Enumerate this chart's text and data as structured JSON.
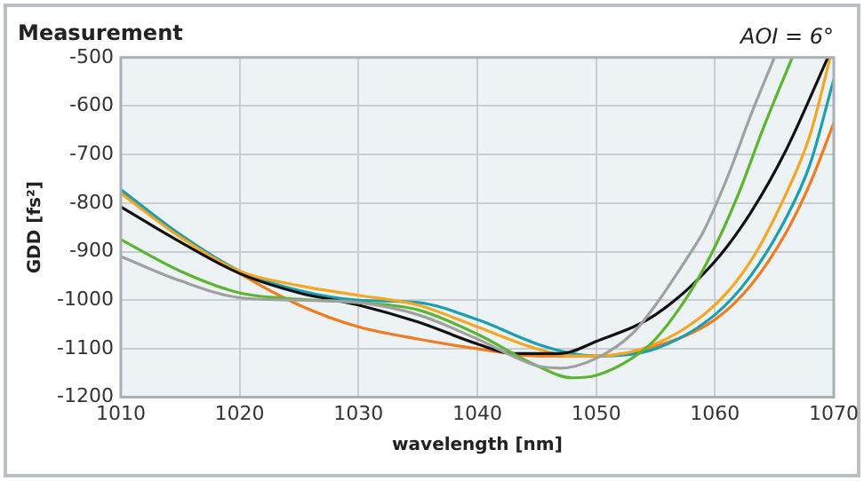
{
  "chart_data": {
    "type": "line",
    "title": "Measurement",
    "xlabel": "wavelength [nm]",
    "ylabel": "GDD [fs²]",
    "annotations": [
      "AOI = 6°"
    ],
    "xlim": [
      1010,
      1070
    ],
    "xticks": [
      1010,
      1020,
      1030,
      1040,
      1050,
      1060,
      1070
    ],
    "ylim": [
      -1200,
      -500
    ],
    "yticks": [
      -1200,
      -1100,
      -1000,
      -900,
      -800,
      -700,
      -600,
      -500
    ],
    "grid": true,
    "marker": "none",
    "line_style": "solid",
    "legend": false,
    "series": [
      {
        "color": "#a0a0a0",
        "x": [
          1010,
          1015,
          1020,
          1025,
          1030,
          1035,
          1040,
          1045,
          1047,
          1050,
          1053,
          1055,
          1058,
          1059,
          1061,
          1063,
          1065
        ],
        "values": [
          -910,
          -960,
          -995,
          -1000,
          -1005,
          -1030,
          -1080,
          -1135,
          -1140,
          -1120,
          -1070,
          -1010,
          -900,
          -860,
          -750,
          -620,
          -500
        ]
      },
      {
        "color": "#5cb531",
        "x": [
          1010,
          1015,
          1020,
          1025,
          1030,
          1035,
          1040,
          1045,
          1048,
          1050,
          1053,
          1055,
          1058,
          1060,
          1062,
          1064,
          1066.5
        ],
        "values": [
          -875,
          -940,
          -985,
          -998,
          -1005,
          -1020,
          -1070,
          -1135,
          -1160,
          -1155,
          -1120,
          -1080,
          -980,
          -890,
          -780,
          -650,
          -500
        ]
      },
      {
        "color": "#111111",
        "x": [
          1010,
          1015,
          1020,
          1025,
          1030,
          1035,
          1040,
          1043,
          1047,
          1050,
          1055,
          1060,
          1063,
          1066,
          1069.5
        ],
        "values": [
          -808,
          -880,
          -945,
          -985,
          -1010,
          -1045,
          -1090,
          -1110,
          -1110,
          -1085,
          -1030,
          -920,
          -820,
          -690,
          -500
        ]
      },
      {
        "color": "#f5a623",
        "x": [
          1010,
          1015,
          1020,
          1025,
          1030,
          1035,
          1040,
          1045,
          1048,
          1050,
          1055,
          1060,
          1063,
          1066,
          1068,
          1069.7
        ],
        "values": [
          -780,
          -870,
          -940,
          -970,
          -990,
          -1010,
          -1055,
          -1100,
          -1115,
          -1115,
          -1090,
          -1010,
          -920,
          -780,
          -660,
          -500
        ]
      },
      {
        "color": "#1a9fb0",
        "x": [
          1010,
          1015,
          1020,
          1025,
          1030,
          1035,
          1040,
          1045,
          1048,
          1050,
          1055,
          1060,
          1063,
          1066,
          1068,
          1070
        ],
        "values": [
          -772,
          -865,
          -940,
          -980,
          -1000,
          -1005,
          -1040,
          -1090,
          -1110,
          -1115,
          -1100,
          -1030,
          -950,
          -830,
          -720,
          -545
        ]
      },
      {
        "color": "#f07b20",
        "x": [
          1010,
          1015,
          1020,
          1025,
          1030,
          1035,
          1040,
          1045,
          1050,
          1055,
          1060,
          1063,
          1066,
          1068,
          1070
        ],
        "values": [
          -778,
          -865,
          -945,
          -1010,
          -1055,
          -1080,
          -1100,
          -1115,
          -1115,
          -1095,
          -1040,
          -970,
          -860,
          -760,
          -635
        ]
      }
    ]
  }
}
